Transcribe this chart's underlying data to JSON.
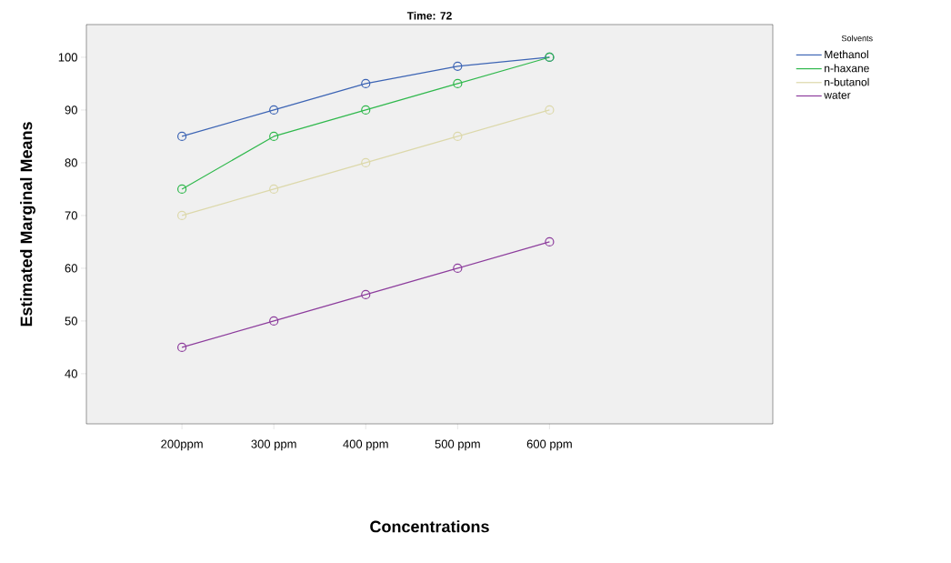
{
  "chart_data": {
    "type": "line",
    "title": "Time: 72",
    "xlabel": "Concentrations",
    "ylabel": "Estimated Marginal Means",
    "legend_title": "Solvents",
    "categories": [
      "200ppm",
      "300 ppm",
      "400 ppm",
      "500 ppm",
      "600 ppm"
    ],
    "series": [
      {
        "name": "Methanol",
        "color": "#3c64b4",
        "values": [
          85,
          90,
          95,
          98.3,
          100
        ]
      },
      {
        "name": "n-haxane",
        "color": "#2fb84c",
        "values": [
          75,
          85,
          90,
          95,
          100
        ]
      },
      {
        "name": "n-butanol",
        "color": "#dcd8aa",
        "values": [
          70,
          75,
          80,
          85,
          90
        ]
      },
      {
        "name": "water",
        "color": "#8c3c9c",
        "values": [
          45,
          50,
          55,
          60,
          65
        ]
      }
    ],
    "ylim": [
      30.5,
      106.2
    ],
    "yticks": [
      40,
      50,
      60,
      70,
      80,
      90,
      100
    ],
    "grid": false,
    "legend": "top right",
    "marker": "circle",
    "line_style": "solid"
  }
}
